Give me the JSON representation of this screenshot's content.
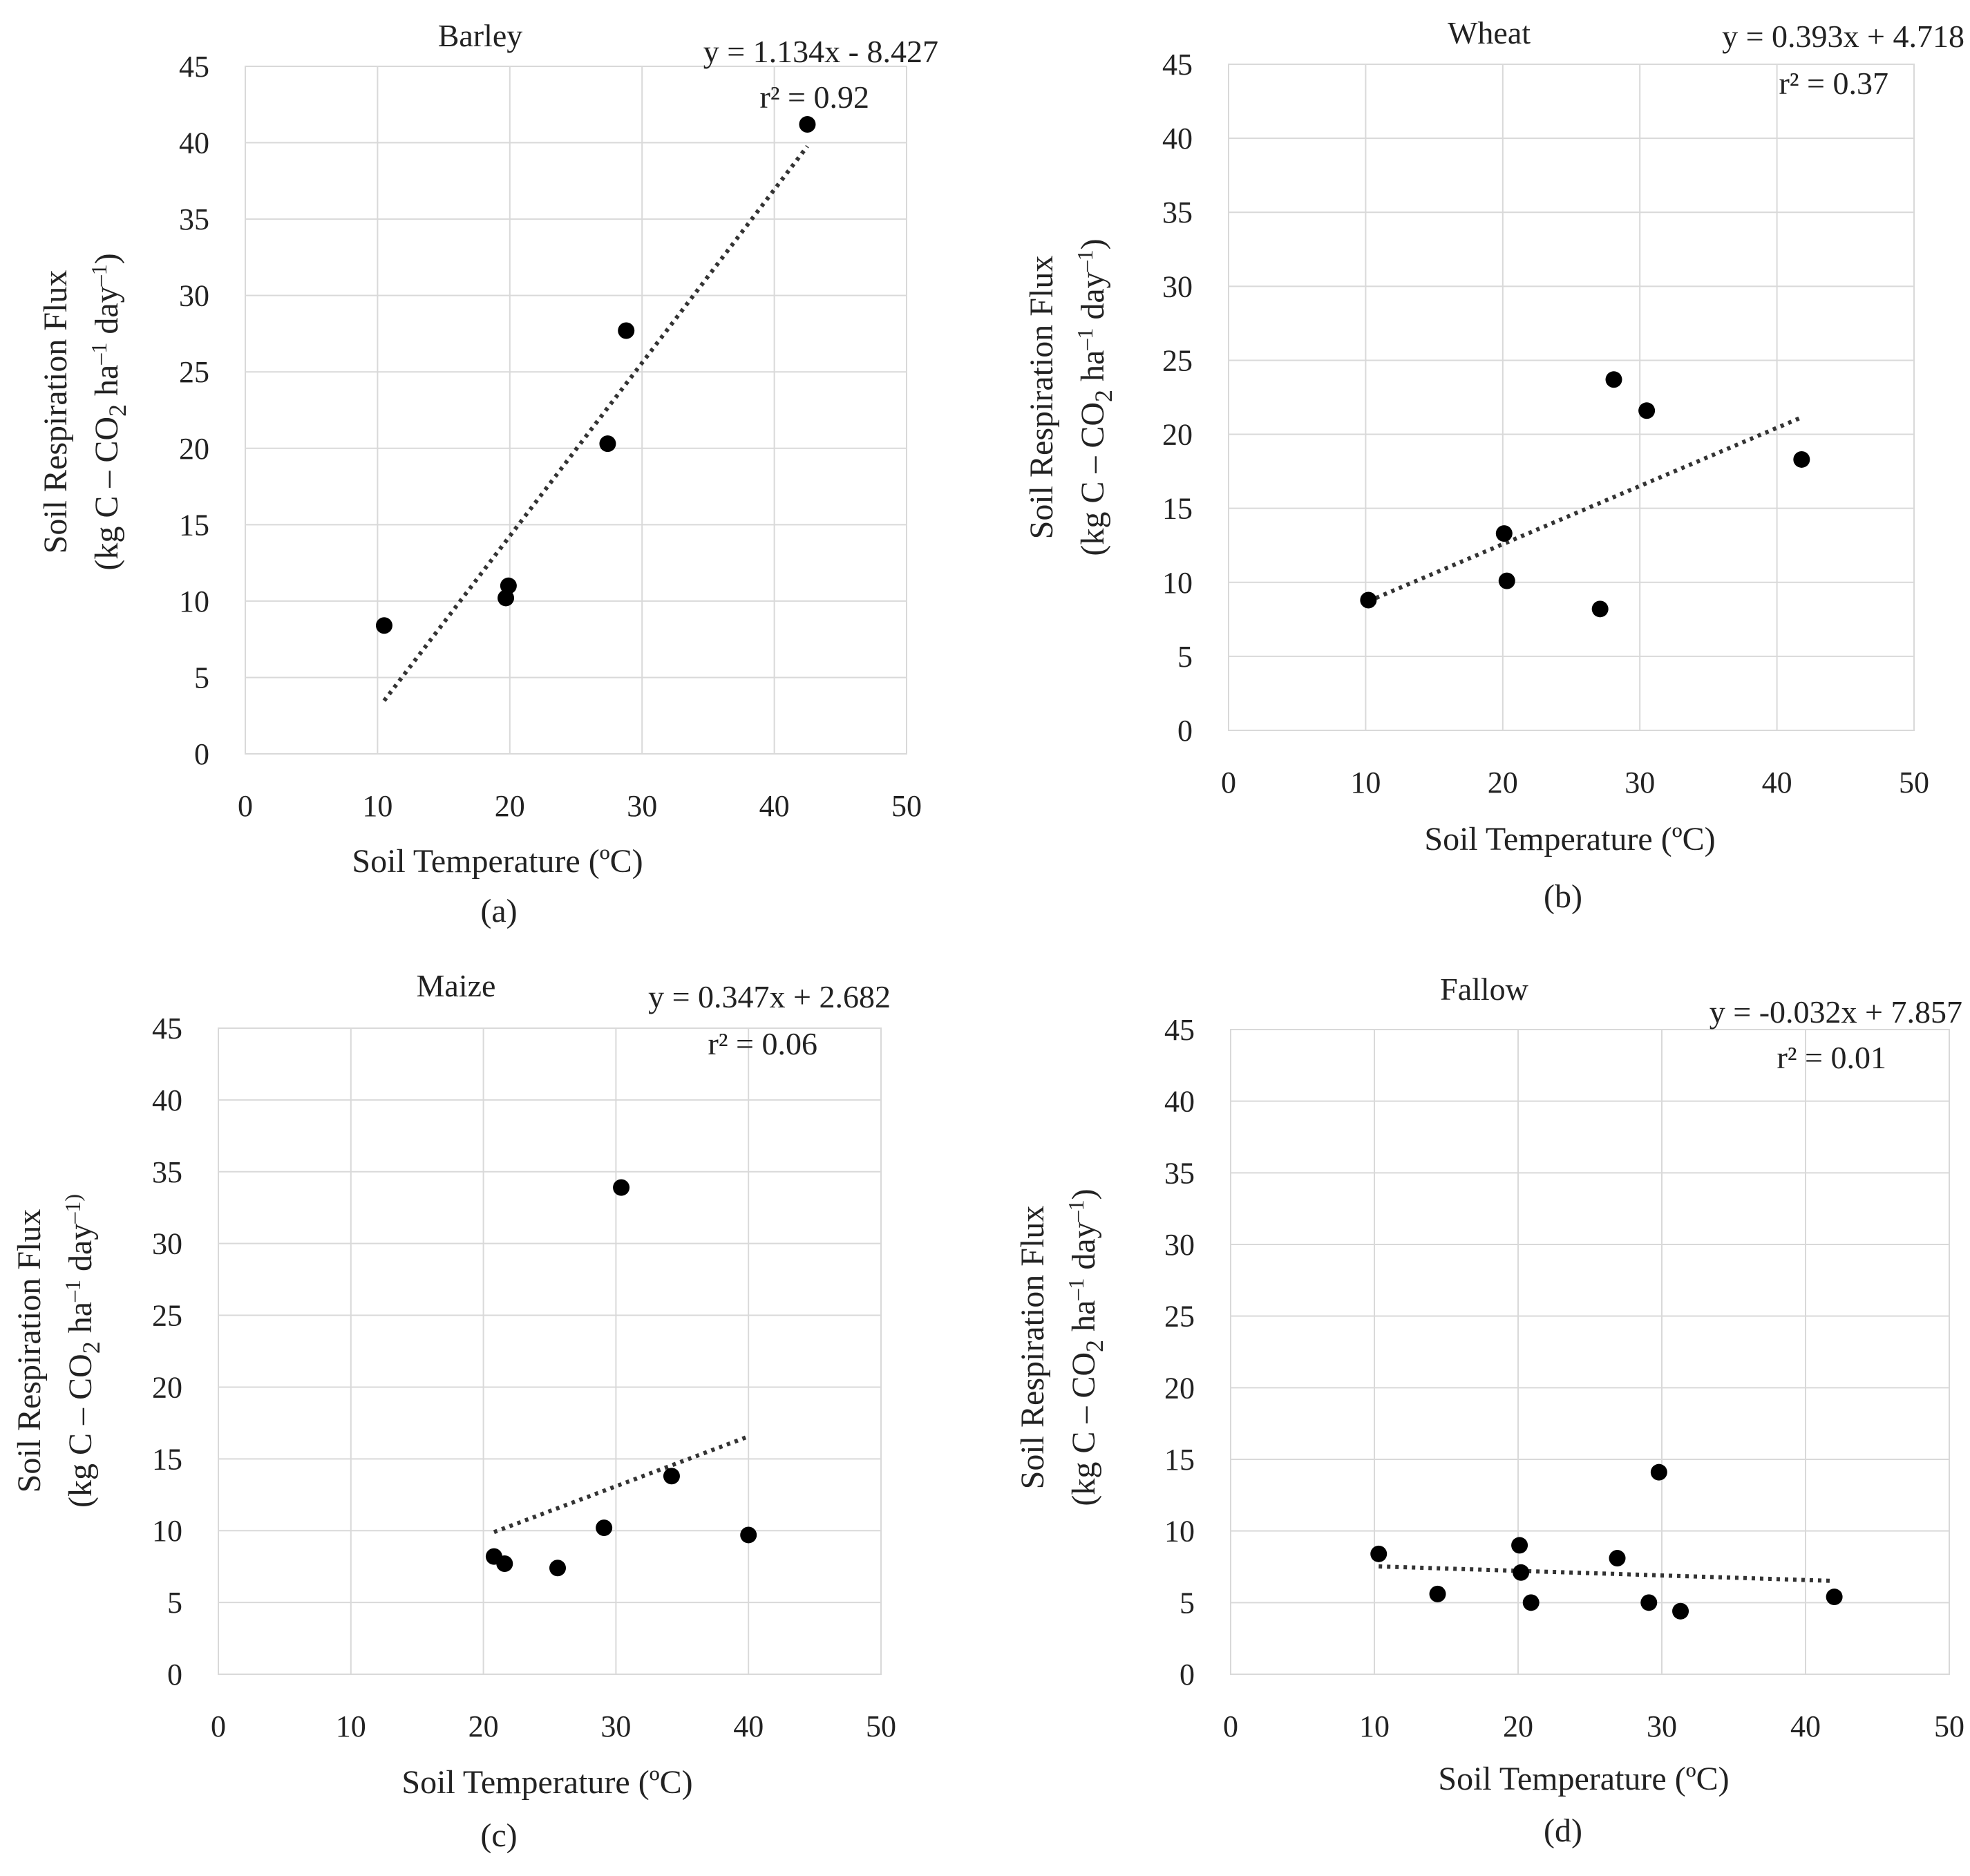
{
  "chart_data": [
    {
      "type": "scatter",
      "title": "Barley",
      "caption": "(a)",
      "xlabel": "Soil Temperature (ºC)",
      "ylabel": [
        "Soil Respiration Flux",
        "(kg C – CO",
        "2",
        " ha",
        "–1",
        " day",
        "–1",
        ")"
      ],
      "xlim": [
        0,
        50
      ],
      "ylim": [
        0,
        45
      ],
      "xticks": [
        0,
        10,
        20,
        30,
        40,
        50
      ],
      "yticks": [
        0,
        5,
        10,
        15,
        20,
        25,
        30,
        35,
        40,
        45
      ],
      "equation": "y = 1.134x - 8.427",
      "r2": "r² = 0.92",
      "trend": {
        "slope": 1.134,
        "intercept": -8.427,
        "x_range": [
          10.5,
          42.5
        ]
      },
      "points": [
        {
          "x": 10.5,
          "y": 8.4
        },
        {
          "x": 19.7,
          "y": 10.2
        },
        {
          "x": 19.9,
          "y": 11.0
        },
        {
          "x": 27.4,
          "y": 20.3
        },
        {
          "x": 28.8,
          "y": 27.7
        },
        {
          "x": 42.5,
          "y": 41.2
        }
      ]
    },
    {
      "type": "scatter",
      "title": "Wheat",
      "caption": "(b)",
      "xlabel": "Soil Temperature (ºC)",
      "ylabel": [
        "Soil Respiration Flux",
        "(kg C – CO",
        "2",
        " ha",
        "–1",
        " day",
        "–1",
        ")"
      ],
      "xlim": [
        0,
        50
      ],
      "ylim": [
        0,
        45
      ],
      "xticks": [
        0,
        10,
        20,
        30,
        40,
        50
      ],
      "yticks": [
        0,
        5,
        10,
        15,
        20,
        25,
        30,
        35,
        40,
        45
      ],
      "equation": "y = 0.393x + 4.718",
      "r2": "r² = 0.37",
      "trend": {
        "slope": 0.393,
        "intercept": 4.718,
        "x_range": [
          10.2,
          41.8
        ]
      },
      "points": [
        {
          "x": 10.2,
          "y": 8.8
        },
        {
          "x": 20.1,
          "y": 13.3
        },
        {
          "x": 20.3,
          "y": 10.1
        },
        {
          "x": 27.1,
          "y": 8.2
        },
        {
          "x": 28.1,
          "y": 23.7
        },
        {
          "x": 30.5,
          "y": 21.6
        },
        {
          "x": 41.8,
          "y": 18.3
        }
      ]
    },
    {
      "type": "scatter",
      "title": "Maize",
      "caption": "(c)",
      "xlabel": "Soil Temperature (ºC)",
      "ylabel": [
        "Soil Respiration Flux",
        "(kg C – CO",
        "2",
        " ha",
        "–1",
        " day",
        "–1)",
        ""
      ],
      "xlim": [
        0,
        50
      ],
      "ylim": [
        0,
        45
      ],
      "xticks": [
        0,
        10,
        20,
        30,
        40,
        50
      ],
      "yticks": [
        0,
        5,
        10,
        15,
        20,
        25,
        30,
        35,
        40,
        45
      ],
      "equation": "y = 0.347x + 2.682",
      "r2": "r² = 0.06",
      "trend": {
        "slope": 0.347,
        "intercept": 2.682,
        "x_range": [
          20.8,
          40.0
        ]
      },
      "points": [
        {
          "x": 20.8,
          "y": 8.2
        },
        {
          "x": 21.6,
          "y": 7.7
        },
        {
          "x": 25.6,
          "y": 7.4
        },
        {
          "x": 29.1,
          "y": 10.2
        },
        {
          "x": 30.4,
          "y": 33.9
        },
        {
          "x": 34.2,
          "y": 13.8
        },
        {
          "x": 40.0,
          "y": 9.7
        }
      ]
    },
    {
      "type": "scatter",
      "title": "Fallow",
      "caption": "(d)",
      "xlabel": "Soil Temperature (ºC)",
      "ylabel": [
        "Soil Respiration Flux",
        "(kg C – CO",
        "2",
        " ha",
        "–1",
        " day",
        "–1",
        ")"
      ],
      "xlim": [
        0,
        50
      ],
      "ylim": [
        0,
        45
      ],
      "xticks": [
        0,
        10,
        20,
        30,
        40,
        50
      ],
      "yticks": [
        0,
        5,
        10,
        15,
        20,
        25,
        30,
        35,
        40,
        45
      ],
      "equation": "y = -0.032x + 7.857",
      "r2": "r² = 0.01",
      "trend": {
        "slope": -0.032,
        "intercept": 7.857,
        "x_range": [
          10.3,
          42.0
        ]
      },
      "points": [
        {
          "x": 10.3,
          "y": 8.4
        },
        {
          "x": 14.4,
          "y": 5.6
        },
        {
          "x": 20.1,
          "y": 9.0
        },
        {
          "x": 20.2,
          "y": 7.1
        },
        {
          "x": 20.9,
          "y": 5.0
        },
        {
          "x": 26.9,
          "y": 8.1
        },
        {
          "x": 29.1,
          "y": 5.0
        },
        {
          "x": 29.8,
          "y": 14.1
        },
        {
          "x": 31.3,
          "y": 4.4
        },
        {
          "x": 42.0,
          "y": 5.4
        }
      ]
    }
  ]
}
